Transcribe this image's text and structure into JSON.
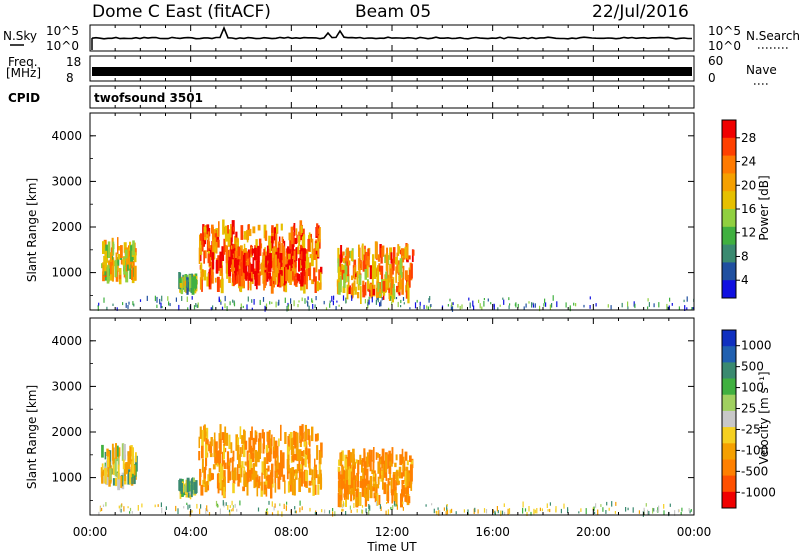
{
  "header": {
    "station": "Dome C East (fitACF)",
    "beam": "Beam 05",
    "date": "22/Jul/2016"
  },
  "strip_panels": {
    "sky": {
      "left_label": "N.Sky",
      "right_label": "N.Search",
      "left_ticks": [
        "10^5",
        "10^0"
      ],
      "right_ticks": [
        "10^5",
        "10^0"
      ]
    },
    "freq": {
      "left_label_1": "Freq.",
      "left_label_2": "[MHz]",
      "right_label": "Nave",
      "left_ticks": [
        "18",
        "8"
      ],
      "right_ticks": [
        "60",
        "0"
      ]
    },
    "cpid": {
      "left_label": "CPID",
      "program": "twofsound 3501"
    }
  },
  "power_panel": {
    "ylabel": "Slant Range [km]",
    "y_ticks": [
      "4000",
      "3000",
      "2000",
      "1000"
    ],
    "colorbar_label": "Power [dB]",
    "colorbar_ticks": [
      "28",
      "24",
      "20",
      "16",
      "12",
      "8",
      "4"
    ],
    "colors": [
      "#f00000",
      "#ff4000",
      "#ff7a00",
      "#f5a000",
      "#e6c000",
      "#90d040",
      "#40b040",
      "#3a8a70",
      "#2050a0",
      "#1010e0"
    ]
  },
  "velocity_panel": {
    "ylabel": "Slant Range [km]",
    "y_ticks": [
      "4000",
      "3000",
      "2000",
      "1000"
    ],
    "colorbar_label": "Velocity [m s⁻¹]",
    "colorbar_ticks": [
      "1000",
      "500",
      "100",
      "25",
      "-25",
      "-100",
      "-500",
      "-1000"
    ],
    "colors": [
      "#1030c0",
      "#2060b0",
      "#3a8a70",
      "#40b040",
      "#a0d060",
      "#c8c8c8",
      "#f5d020",
      "#f5a000",
      "#ff8000",
      "#ff5000",
      "#f00000"
    ]
  },
  "x_axis": {
    "label": "Time UT",
    "ticks": [
      "00:00",
      "04:00",
      "08:00",
      "12:00",
      "16:00",
      "20:00",
      "00:00"
    ]
  },
  "chart_data": [
    {
      "type": "heatmap",
      "title": "Dome C East (fitACF)  Beam 05  22/Jul/2016",
      "xlabel": "Time UT",
      "ylabel": "Slant Range [km]",
      "colorbar": "Power [dB]",
      "xlim": [
        0,
        24
      ],
      "ylim": [
        180,
        4500
      ],
      "clim": [
        0,
        32
      ],
      "blobs": [
        {
          "t0": 0.4,
          "t1": 1.8,
          "r0": 900,
          "r1": 1600,
          "value": 18
        },
        {
          "t0": 4.3,
          "t1": 9.2,
          "r0": 700,
          "r1": 2000,
          "value": 24
        },
        {
          "t0": 5.5,
          "t1": 8.5,
          "r0": 800,
          "r1": 1500,
          "value": 28
        },
        {
          "t0": 9.8,
          "t1": 12.8,
          "r0": 500,
          "r1": 1500,
          "value": 22
        },
        {
          "t0": 3.5,
          "t1": 4.2,
          "r0": 700,
          "r1": 850,
          "value": 14
        },
        {
          "t0": 0.2,
          "t1": 24.0,
          "r0": 200,
          "r1": 450,
          "value": 8
        }
      ]
    },
    {
      "type": "heatmap",
      "title": "",
      "xlabel": "Time UT",
      "ylabel": "Slant Range [km]",
      "colorbar": "Velocity [m s⁻¹]",
      "xlim": [
        0,
        24
      ],
      "ylim": [
        180,
        4500
      ],
      "clim": [
        -1000,
        1000
      ],
      "blobs": [
        {
          "t0": 0.4,
          "t1": 1.8,
          "r0": 900,
          "r1": 1600,
          "value": -100
        },
        {
          "t0": 4.3,
          "t1": 9.2,
          "r0": 700,
          "r1": 2000,
          "value": -300
        },
        {
          "t0": 9.8,
          "t1": 12.8,
          "r0": 500,
          "r1": 1500,
          "value": -300
        },
        {
          "t0": 3.5,
          "t1": 4.2,
          "r0": 700,
          "r1": 850,
          "value": 50
        },
        {
          "t0": 0.2,
          "t1": 24.0,
          "r0": 200,
          "r1": 450,
          "value": -25
        }
      ]
    }
  ]
}
